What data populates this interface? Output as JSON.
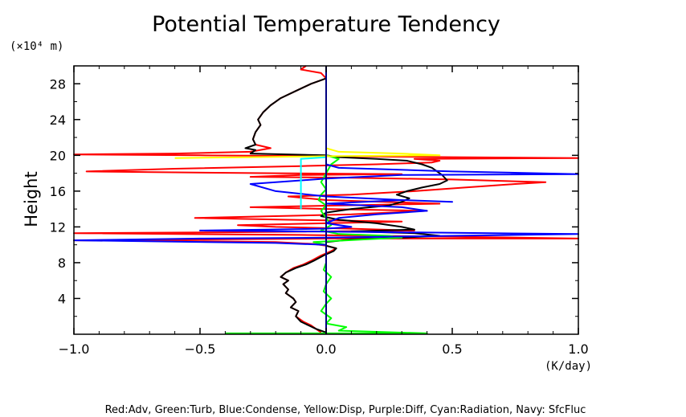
{
  "chart_data": {
    "type": "line",
    "title": "Potential Temperature Tendency",
    "y_unit_label": "(×10⁴ m)",
    "x_unit_label": "(K/day)",
    "ylabel": "Height",
    "xlabel": "",
    "legend_text": "Red:Adv, Green:Turb, Blue:Condense, Yellow:Disp, Purple:Diff, Cyan:Radiation, Navy: SfcFluc",
    "xlim": [
      -1.0,
      1.0
    ],
    "ylim": [
      0,
      30
    ],
    "x_ticks": [
      -1.0,
      -0.5,
      0.0,
      0.5,
      1.0
    ],
    "x_tick_labels": [
      "−1.0",
      "−0.5",
      "0.0",
      "0.5",
      "1.0"
    ],
    "y_ticks": [
      4,
      8,
      12,
      16,
      20,
      24,
      28
    ],
    "y_tick_labels": [
      "4",
      "8",
      "12",
      "16",
      "20",
      "24",
      "28"
    ],
    "series": [
      {
        "name": "Red:Adv",
        "color": "#ff0000",
        "points": [
          [
            -0.02,
            0.2
          ],
          [
            -0.04,
            0.6
          ],
          [
            -0.06,
            1.0
          ],
          [
            -0.09,
            1.4
          ],
          [
            -0.12,
            2.0
          ],
          [
            -0.11,
            2.6
          ],
          [
            -0.14,
            3.0
          ],
          [
            -0.12,
            3.6
          ],
          [
            -0.13,
            4.0
          ],
          [
            -0.16,
            4.6
          ],
          [
            -0.15,
            5.0
          ],
          [
            -0.17,
            5.6
          ],
          [
            -0.15,
            6.0
          ],
          [
            -0.18,
            6.4
          ],
          [
            -0.16,
            6.9
          ],
          [
            -0.13,
            7.4
          ],
          [
            -0.09,
            7.8
          ],
          [
            -0.06,
            8.2
          ],
          [
            -0.02,
            8.8
          ],
          [
            0.02,
            9.3
          ],
          [
            0.04,
            9.6
          ],
          [
            0.0,
            9.9
          ],
          [
            -0.05,
            10.1
          ],
          [
            -0.2,
            10.3
          ],
          [
            -0.5,
            10.4
          ],
          [
            -1.0,
            10.5
          ],
          [
            -0.5,
            10.6
          ],
          [
            0.0,
            10.7
          ],
          [
            0.5,
            10.7
          ],
          [
            1.0,
            10.7
          ],
          [
            0.5,
            10.9
          ],
          [
            -0.1,
            11.1
          ],
          [
            -1.0,
            11.3
          ],
          [
            -0.4,
            11.4
          ],
          [
            0.0,
            11.5
          ],
          [
            0.35,
            11.6
          ],
          [
            0.1,
            11.8
          ],
          [
            -0.2,
            12.0
          ],
          [
            -0.35,
            12.2
          ],
          [
            0.0,
            12.4
          ],
          [
            0.3,
            12.6
          ],
          [
            -0.15,
            12.8
          ],
          [
            -0.52,
            13.0
          ],
          [
            -0.2,
            13.2
          ],
          [
            0.1,
            13.4
          ],
          [
            0.4,
            13.8
          ],
          [
            0.0,
            14.0
          ],
          [
            -0.3,
            14.2
          ],
          [
            0.05,
            14.4
          ],
          [
            0.45,
            14.6
          ],
          [
            0.0,
            15.0
          ],
          [
            -0.15,
            15.4
          ],
          [
            0.1,
            15.6
          ],
          [
            0.35,
            16.0
          ],
          [
            0.55,
            16.4
          ],
          [
            0.75,
            16.8
          ],
          [
            0.87,
            17.0
          ],
          [
            0.5,
            17.3
          ],
          [
            0.1,
            17.5
          ],
          [
            -0.3,
            17.6
          ],
          [
            -0.1,
            17.8
          ],
          [
            0.3,
            17.9
          ],
          [
            -0.2,
            18.0
          ],
          [
            -0.6,
            18.1
          ],
          [
            -0.95,
            18.2
          ],
          [
            -0.6,
            18.5
          ],
          [
            -0.1,
            18.8
          ],
          [
            0.2,
            19.0
          ],
          [
            0.42,
            19.2
          ],
          [
            0.45,
            19.4
          ],
          [
            0.35,
            19.6
          ],
          [
            1.0,
            19.7
          ],
          [
            0.5,
            19.8
          ],
          [
            0.0,
            19.9
          ],
          [
            -0.5,
            20.0
          ],
          [
            -1.0,
            20.1
          ],
          [
            -0.6,
            20.2
          ],
          [
            -0.3,
            20.4
          ],
          [
            -0.22,
            20.8
          ],
          [
            -0.28,
            21.2
          ],
          [
            -0.29,
            21.8
          ],
          [
            -0.28,
            22.6
          ],
          [
            -0.26,
            23.4
          ],
          [
            -0.27,
            24.0
          ],
          [
            -0.25,
            24.8
          ],
          [
            -0.22,
            25.6
          ],
          [
            -0.18,
            26.4
          ],
          [
            -0.12,
            27.2
          ],
          [
            -0.06,
            28.0
          ],
          [
            0.0,
            28.6
          ],
          [
            -0.02,
            29.2
          ],
          [
            -0.1,
            29.6
          ],
          [
            -0.08,
            30.0
          ]
        ]
      },
      {
        "name": "Black",
        "color": "#000000",
        "points": [
          [
            0.0,
            0.2
          ],
          [
            -0.04,
            0.6
          ],
          [
            -0.07,
            1.0
          ],
          [
            -0.1,
            1.4
          ],
          [
            -0.12,
            2.0
          ],
          [
            -0.11,
            2.6
          ],
          [
            -0.14,
            3.0
          ],
          [
            -0.12,
            3.6
          ],
          [
            -0.13,
            4.0
          ],
          [
            -0.16,
            4.6
          ],
          [
            -0.15,
            5.0
          ],
          [
            -0.17,
            5.6
          ],
          [
            -0.15,
            6.0
          ],
          [
            -0.18,
            6.4
          ],
          [
            -0.16,
            6.9
          ],
          [
            -0.12,
            7.4
          ],
          [
            -0.08,
            7.8
          ],
          [
            -0.05,
            8.2
          ],
          [
            -0.01,
            8.8
          ],
          [
            0.03,
            9.3
          ],
          [
            0.04,
            9.6
          ],
          [
            0.0,
            9.9
          ],
          [
            0.0,
            10.3
          ],
          [
            0.1,
            10.6
          ],
          [
            0.3,
            10.8
          ],
          [
            0.45,
            11.0
          ],
          [
            0.35,
            11.3
          ],
          [
            0.1,
            11.5
          ],
          [
            0.35,
            11.7
          ],
          [
            0.3,
            12.0
          ],
          [
            0.2,
            12.4
          ],
          [
            0.05,
            12.8
          ],
          [
            -0.02,
            13.2
          ],
          [
            0.0,
            13.6
          ],
          [
            0.1,
            14.0
          ],
          [
            0.25,
            14.4
          ],
          [
            0.3,
            14.8
          ],
          [
            0.33,
            15.2
          ],
          [
            0.28,
            15.6
          ],
          [
            0.32,
            16.0
          ],
          [
            0.38,
            16.4
          ],
          [
            0.45,
            16.8
          ],
          [
            0.48,
            17.2
          ],
          [
            0.46,
            17.8
          ],
          [
            0.44,
            18.2
          ],
          [
            0.42,
            18.6
          ],
          [
            0.38,
            19.0
          ],
          [
            0.32,
            19.4
          ],
          [
            0.2,
            19.6
          ],
          [
            0.05,
            19.8
          ],
          [
            0.0,
            20.0
          ],
          [
            -0.3,
            20.2
          ],
          [
            -0.28,
            20.6
          ],
          [
            -0.32,
            20.8
          ],
          [
            -0.28,
            21.2
          ],
          [
            -0.29,
            21.8
          ],
          [
            -0.28,
            22.6
          ],
          [
            -0.26,
            23.4
          ],
          [
            -0.27,
            24.0
          ],
          [
            -0.25,
            24.8
          ],
          [
            -0.22,
            25.6
          ],
          [
            -0.18,
            26.4
          ],
          [
            -0.12,
            27.2
          ],
          [
            -0.06,
            28.0
          ],
          [
            0.0,
            28.6
          ]
        ]
      },
      {
        "name": "Green:Turb",
        "color": "#00ff00",
        "points": [
          [
            -0.4,
            0.1
          ],
          [
            0.0,
            0.1
          ],
          [
            0.4,
            0.1
          ],
          [
            0.05,
            0.4
          ],
          [
            0.08,
            0.8
          ],
          [
            0.0,
            1.2
          ],
          [
            0.02,
            1.8
          ],
          [
            -0.02,
            2.6
          ],
          [
            0.0,
            3.4
          ],
          [
            0.02,
            4.0
          ],
          [
            -0.01,
            4.8
          ],
          [
            0.0,
            5.6
          ],
          [
            0.02,
            6.4
          ],
          [
            -0.01,
            7.2
          ],
          [
            0.0,
            8.0
          ],
          [
            0.0,
            8.8
          ],
          [
            0.0,
            9.6
          ],
          [
            0.0,
            10.0
          ],
          [
            -0.05,
            10.3
          ],
          [
            0.15,
            10.6
          ],
          [
            0.3,
            10.8
          ],
          [
            0.25,
            11.0
          ],
          [
            0.05,
            11.2
          ],
          [
            -0.02,
            11.6
          ],
          [
            0.02,
            12.2
          ],
          [
            0.0,
            13.0
          ],
          [
            -0.02,
            13.8
          ],
          [
            0.0,
            14.4
          ],
          [
            -0.03,
            15.0
          ],
          [
            -0.02,
            15.6
          ],
          [
            0.0,
            16.2
          ],
          [
            -0.02,
            17.0
          ],
          [
            0.0,
            18.0
          ],
          [
            0.02,
            19.0
          ],
          [
            0.05,
            19.6
          ],
          [
            0.0,
            20.0
          ],
          [
            0.0,
            21.0
          ]
        ]
      },
      {
        "name": "Blue:Condense",
        "color": "#0000ff",
        "points": [
          [
            0.0,
            0.0
          ],
          [
            0.0,
            10.0
          ],
          [
            -0.2,
            10.2
          ],
          [
            -1.0,
            10.5
          ],
          [
            -0.5,
            10.7
          ],
          [
            0.0,
            10.8
          ],
          [
            0.5,
            11.0
          ],
          [
            1.0,
            11.2
          ],
          [
            0.3,
            11.4
          ],
          [
            -0.5,
            11.6
          ],
          [
            0.0,
            11.8
          ],
          [
            0.1,
            12.0
          ],
          [
            0.0,
            12.4
          ],
          [
            0.05,
            13.0
          ],
          [
            0.2,
            13.4
          ],
          [
            0.4,
            13.8
          ],
          [
            0.3,
            14.2
          ],
          [
            0.0,
            14.6
          ],
          [
            0.3,
            15.0
          ],
          [
            0.5,
            14.8
          ],
          [
            0.3,
            15.0
          ],
          [
            0.0,
            15.4
          ],
          [
            -0.2,
            16.0
          ],
          [
            -0.3,
            16.8
          ],
          [
            0.0,
            17.4
          ],
          [
            0.3,
            17.8
          ],
          [
            1.0,
            17.9
          ],
          [
            0.5,
            18.2
          ],
          [
            0.05,
            18.6
          ],
          [
            0.0,
            19.0
          ]
        ]
      },
      {
        "name": "Yellow:Disp",
        "color": "#ffff00",
        "points": [
          [
            -0.6,
            19.7
          ],
          [
            -0.3,
            19.8
          ],
          [
            0.0,
            19.9
          ],
          [
            0.45,
            20.0
          ],
          [
            0.3,
            20.2
          ],
          [
            0.05,
            20.4
          ],
          [
            0.0,
            20.8
          ],
          [
            0.0,
            21.5
          ]
        ]
      },
      {
        "name": "Cyan:Radiation",
        "color": "#00ffff",
        "points": [
          [
            -0.1,
            14.0
          ],
          [
            -0.1,
            16.0
          ],
          [
            -0.1,
            18.0
          ],
          [
            -0.1,
            19.6
          ],
          [
            0.0,
            19.8
          ],
          [
            0.0,
            20.0
          ]
        ]
      },
      {
        "name": "Navy: SfcFluc",
        "color": "#000080",
        "points": [
          [
            0.0,
            0.0
          ],
          [
            0.0,
            30.0
          ]
        ]
      }
    ]
  }
}
